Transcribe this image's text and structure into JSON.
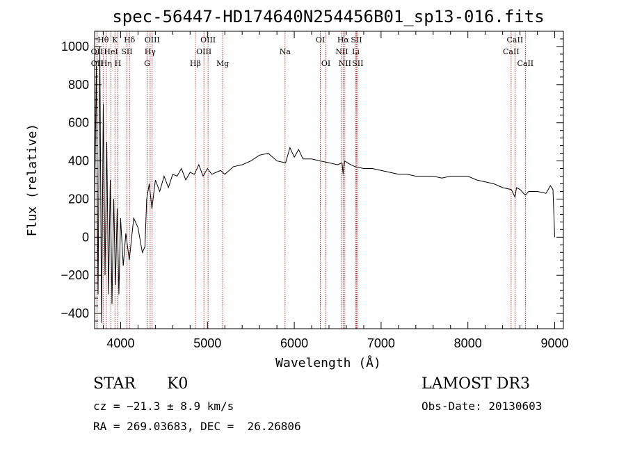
{
  "chart_data": {
    "type": "line",
    "title": "spec-56447-HD174640N254456B01_sp13-016.fits",
    "xlabel": "Wavelength (Å)",
    "ylabel": "Flux (relative)",
    "xlim": [
      3700,
      9100
    ],
    "ylim": [
      -480,
      1080
    ],
    "xticks": [
      4000,
      5000,
      6000,
      7000,
      8000,
      9000
    ],
    "yticks": [
      -400,
      -200,
      0,
      200,
      400,
      600,
      800,
      1000
    ],
    "ytick_labels": [
      "−400",
      "−200",
      "0",
      "200",
      "400",
      "600",
      "800",
      "1000"
    ],
    "series": [
      {
        "name": "spectrum",
        "x": [
          3700,
          3720,
          3740,
          3760,
          3780,
          3800,
          3820,
          3840,
          3860,
          3880,
          3900,
          3920,
          3940,
          3960,
          3980,
          4000,
          4030,
          4060,
          4100,
          4150,
          4200,
          4250,
          4280,
          4300,
          4330,
          4360,
          4400,
          4450,
          4500,
          4550,
          4600,
          4650,
          4700,
          4750,
          4800,
          4850,
          4900,
          4950,
          5000,
          5050,
          5100,
          5150,
          5200,
          5300,
          5400,
          5500,
          5600,
          5700,
          5800,
          5900,
          5950,
          6000,
          6050,
          6100,
          6200,
          6300,
          6400,
          6500,
          6550,
          6563,
          6580,
          6650,
          6700,
          6800,
          6900,
          7000,
          7100,
          7200,
          7300,
          7400,
          7500,
          7600,
          7700,
          7800,
          7900,
          8000,
          8100,
          8200,
          8300,
          8400,
          8500,
          8542,
          8560,
          8600,
          8662,
          8700,
          8800,
          8900,
          8950,
          8980,
          9000
        ],
        "y": [
          150,
          900,
          -300,
          1000,
          -450,
          700,
          -200,
          500,
          -300,
          300,
          -350,
          200,
          -250,
          150,
          -300,
          100,
          -150,
          20,
          -120,
          100,
          50,
          -80,
          -50,
          200,
          280,
          150,
          300,
          240,
          320,
          260,
          330,
          320,
          360,
          300,
          340,
          330,
          380,
          320,
          360,
          330,
          340,
          350,
          330,
          370,
          380,
          400,
          430,
          440,
          400,
          390,
          470,
          420,
          460,
          410,
          410,
          400,
          390,
          380,
          390,
          330,
          400,
          380,
          370,
          360,
          360,
          350,
          340,
          330,
          330,
          320,
          320,
          320,
          310,
          320,
          320,
          320,
          300,
          290,
          280,
          260,
          250,
          210,
          260,
          250,
          220,
          240,
          240,
          230,
          270,
          250,
          0
        ]
      }
    ],
    "line_markers": [
      {
        "label": "OII",
        "wavelength": 3727,
        "row": 2
      },
      {
        "label": "OII",
        "wavelength": 3729,
        "row": 3
      },
      {
        "label": "Hθ",
        "wavelength": 3798,
        "row": 1
      },
      {
        "label": "Hη",
        "wavelength": 3835,
        "row": 3
      },
      {
        "label": "HeI",
        "wavelength": 3889,
        "row": 2
      },
      {
        "label": "K",
        "wavelength": 3934,
        "row": 1
      },
      {
        "label": "H",
        "wavelength": 3968,
        "row": 3
      },
      {
        "label": "SII",
        "wavelength": 4072,
        "row": 2
      },
      {
        "label": "Hδ",
        "wavelength": 4102,
        "row": 1
      },
      {
        "label": "G",
        "wavelength": 4305,
        "row": 3
      },
      {
        "label": "Hγ",
        "wavelength": 4340,
        "row": 2
      },
      {
        "label": "OIII",
        "wavelength": 4363,
        "row": 1
      },
      {
        "label": "Hβ",
        "wavelength": 4861,
        "row": 3
      },
      {
        "label": "OIII",
        "wavelength": 4959,
        "row": 2
      },
      {
        "label": "OIII",
        "wavelength": 5007,
        "row": 1
      },
      {
        "label": "Mg",
        "wavelength": 5175,
        "row": 3
      },
      {
        "label": "Na",
        "wavelength": 5894,
        "row": 2
      },
      {
        "label": "OI",
        "wavelength": 6300,
        "row": 1
      },
      {
        "label": "OI",
        "wavelength": 6364,
        "row": 3
      },
      {
        "label": "NII",
        "wavelength": 6548,
        "row": 2
      },
      {
        "label": "Hα",
        "wavelength": 6563,
        "row": 1
      },
      {
        "label": "NII",
        "wavelength": 6583,
        "row": 3
      },
      {
        "label": "Li",
        "wavelength": 6708,
        "row": 2
      },
      {
        "label": "SII",
        "wavelength": 6716,
        "row": 1
      },
      {
        "label": "SII",
        "wavelength": 6731,
        "row": 3
      },
      {
        "label": "CaII",
        "wavelength": 8498,
        "row": 2
      },
      {
        "label": "CaII",
        "wavelength": 8542,
        "row": 1
      },
      {
        "label": "CaII",
        "wavelength": 8662,
        "row": 3
      }
    ]
  },
  "info": {
    "object_class": "STAR",
    "subclass": "K0",
    "survey": "LAMOST DR3",
    "redshift": "cz = −21.3 ± 8.9 km/s",
    "obs_date": "Obs-Date: 20130603",
    "coords": "RA = 269.03683, DEC =  26.26806"
  },
  "colors": {
    "axis": "#000000",
    "spectrum": "#000000",
    "marker_line": "#c00000"
  }
}
